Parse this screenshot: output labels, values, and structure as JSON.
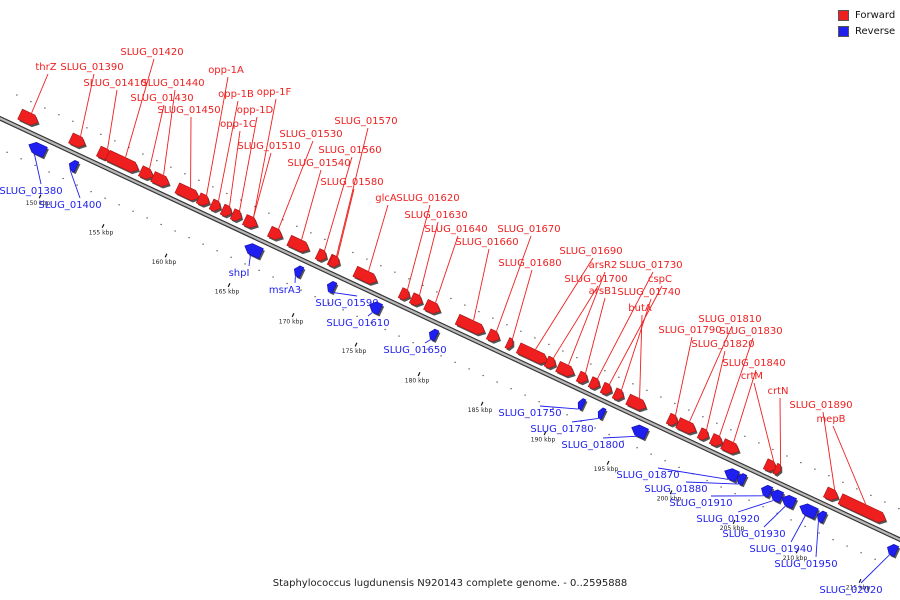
{
  "colors": {
    "forward": "#ef1f1f",
    "reverse": "#1f1fef",
    "backbone": "#8a8a8a"
  },
  "legend": {
    "items": [
      {
        "label": "Forward",
        "color": "#ef1f1f"
      },
      {
        "label": "Reverse",
        "color": "#1f1fef"
      }
    ]
  },
  "footer": {
    "caption": "Staphylococcus lugdunensis N920143 complete genome. - 0..2595888"
  },
  "scale_labels": [
    "150 kbp",
    "155 kbp",
    "160 kbp",
    "165 kbp",
    "170 kbp",
    "175 kbp",
    "180 kbp",
    "185 kbp",
    "190 kbp",
    "195 kbp",
    "200 kbp",
    "205 kbp",
    "210 kbp",
    "215 kbp"
  ],
  "forward_genes": [
    "thrZ",
    "SLUG_01390",
    "SLUG_01410",
    "SLUG_01420",
    "SLUG_01430",
    "SLUG_01440",
    "SLUG_01450",
    "opp-1A",
    "opp-1B",
    "opp-1C",
    "opp-1D",
    "opp-1F",
    "SLUG_01510",
    "SLUG_01530",
    "SLUG_01540",
    "SLUG_01560",
    "SLUG_01570",
    "SLUG_01580",
    "glcA",
    "SLUG_01620",
    "SLUG_01630",
    "SLUG_01640",
    "SLUG_01660",
    "SLUG_01670",
    "SLUG_01680",
    "SLUG_01690",
    "SLUG_01700",
    "arsR2",
    "arsB1",
    "SLUG_01730",
    "cspC",
    "SLUG_01740",
    "butA",
    "SLUG_01790",
    "SLUG_01810",
    "SLUG_01820",
    "SLUG_01830",
    "SLUG_01840",
    "crtM",
    "crtN",
    "SLUG_01890",
    "mepB"
  ],
  "reverse_genes": [
    "SLUG_01380",
    "SLUG_01400",
    "shpI",
    "msrA3",
    "SLUG_01590",
    "SLUG_01610",
    "SLUG_01650",
    "SLUG_01750",
    "SLUG_01780",
    "SLUG_01800",
    "SLUG_01870",
    "SLUG_01880",
    "SLUG_01910",
    "SLUG_01920",
    "SLUG_01930",
    "SLUG_01940",
    "SLUG_01950",
    "SLUG_02020"
  ]
}
